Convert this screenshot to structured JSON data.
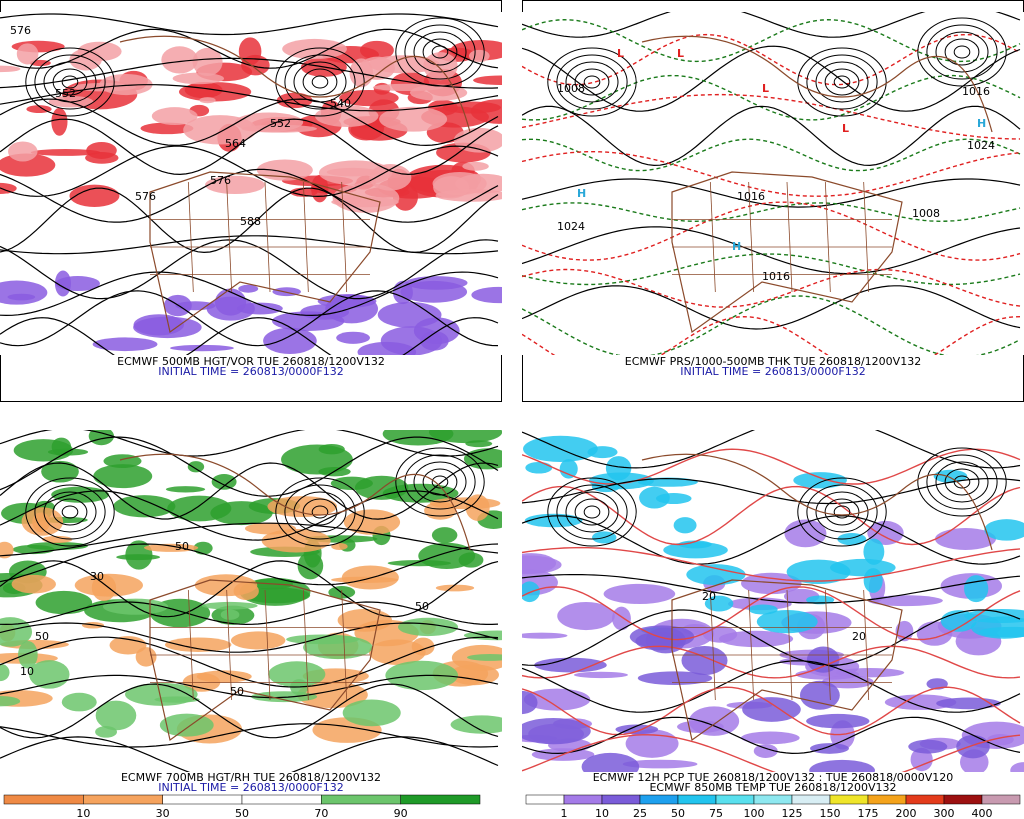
{
  "panels": [
    {
      "caption": [
        "ECMWF 500MB HGT/VOR TUE 260818/1200V132",
        "INITIAL TIME = 260813/0000F132"
      ],
      "labels": [
        "576",
        "552",
        "564",
        "540",
        "552",
        "576",
        "588",
        "576"
      ]
    },
    {
      "caption": [
        "ECMWF PRS/1000-500MB THK TUE 260818/1200V132",
        "INITIAL TIME = 260813/0000F132"
      ],
      "labels": [
        "L",
        "L",
        "L",
        "L",
        "H",
        "H",
        "H",
        "1008",
        "1016",
        "1024",
        "1016",
        "1016",
        "1024",
        "1008"
      ]
    },
    {
      "caption": [
        "ECMWF 700MB HGT/RH TUE 260818/1200V132",
        "INITIAL TIME = 260813/0000F132"
      ],
      "labels": [
        "50",
        "50",
        "10",
        "50",
        "30",
        "50"
      ],
      "colorbar": {
        "labels": [
          "10",
          "30",
          "50",
          "70",
          "90"
        ],
        "colors": [
          "#ef8a45",
          "#f5a35e",
          "#ffffff",
          "#ffffff",
          "#6cc56c",
          "#1f9a28"
        ]
      }
    },
    {
      "caption": [
        "ECMWF 12H PCP TUE 260818/1200V132 : TUE 260818/0000V120",
        "ECMWF 850MB TEMP TUE 260818/1200V132"
      ],
      "labels": [
        "20",
        "20"
      ],
      "colorbar": {
        "labels": [
          "1",
          "10",
          "25",
          "50",
          "75",
          "100",
          "125",
          "150",
          "175",
          "200",
          "300",
          "400"
        ],
        "colors": [
          "#ffffff",
          "#a47be8",
          "#7a5cd9",
          "#1ea0ee",
          "#22c4ee",
          "#59e0ee",
          "#8ee8f0",
          "#d8eef4",
          "#efe52a",
          "#f4a31c",
          "#e33b1b",
          "#9c1010",
          "#c89ab0"
        ]
      }
    }
  ]
}
